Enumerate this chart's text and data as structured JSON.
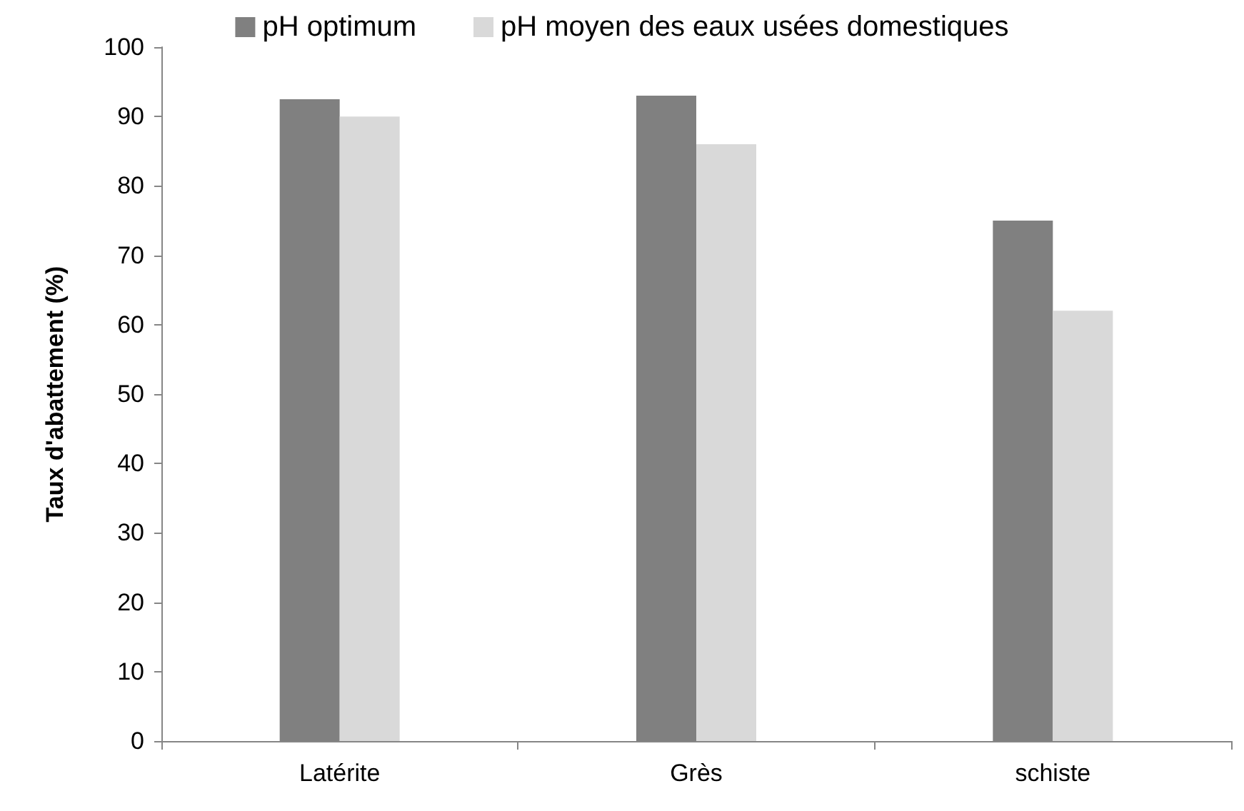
{
  "chart_data": {
    "type": "bar",
    "ylabel": "Taux d'abattement (%)",
    "categories": [
      "Latérite",
      "Grès",
      "schiste"
    ],
    "series": [
      {
        "name": "pH optimum",
        "color": "#808080",
        "values": [
          92.5,
          93,
          75
        ]
      },
      {
        "name": "pH moyen des eaux usées domestiques",
        "color": "#d9d9d9",
        "values": [
          90,
          86,
          62
        ]
      }
    ],
    "ylim": [
      0,
      100
    ],
    "yticks": [
      0,
      10,
      20,
      30,
      40,
      50,
      60,
      70,
      80,
      90,
      100
    ],
    "grid": false,
    "legend": "top"
  }
}
